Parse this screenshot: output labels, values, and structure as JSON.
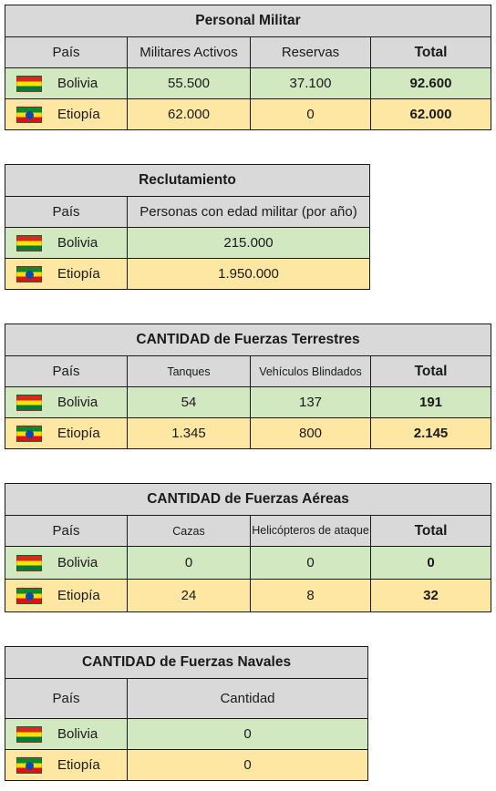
{
  "tables": {
    "personal": {
      "title": "Personal Militar",
      "headers": [
        "País",
        "Militares Activos",
        "Reservas",
        "Total"
      ],
      "rows": [
        {
          "country": "Bolivia",
          "flag": "bolivia-flag-icon",
          "values": [
            "55.500",
            "37.100",
            "92.600"
          ]
        },
        {
          "country": "Etiopía",
          "flag": "ethiopia-flag-icon",
          "values": [
            "62.000",
            "0",
            "62.000"
          ]
        }
      ]
    },
    "reclutamiento": {
      "title": "Reclutamiento",
      "headers": [
        "País",
        "Personas con edad militar (por año)"
      ],
      "rows": [
        {
          "country": "Bolivia",
          "flag": "bolivia-flag-icon",
          "values": [
            "215.000"
          ]
        },
        {
          "country": "Etiopía",
          "flag": "ethiopia-flag-icon",
          "values": [
            "1.950.000"
          ]
        }
      ]
    },
    "terrestres": {
      "title": "CANTIDAD de Fuerzas Terrestres",
      "headers": [
        "País",
        "Tanques",
        "Vehículos Blindados",
        "Total"
      ],
      "rows": [
        {
          "country": "Bolivia",
          "flag": "bolivia-flag-icon",
          "values": [
            "54",
            "137",
            "191"
          ]
        },
        {
          "country": "Etiopía",
          "flag": "ethiopia-flag-icon",
          "values": [
            "1.345",
            "800",
            "2.145"
          ]
        }
      ]
    },
    "aereas": {
      "title": "CANTIDAD de Fuerzas Aéreas",
      "headers": [
        "País",
        "Cazas",
        "Helicópteros de ataque",
        "Total"
      ],
      "rows": [
        {
          "country": "Bolivia",
          "flag": "bolivia-flag-icon",
          "values": [
            "0",
            "0",
            "0"
          ]
        },
        {
          "country": "Etiopía",
          "flag": "ethiopia-flag-icon",
          "values": [
            "24",
            "8",
            "32"
          ]
        }
      ]
    },
    "navales": {
      "title": "CANTIDAD de Fuerzas Navales",
      "headers": [
        "País",
        "Cantidad"
      ],
      "rows": [
        {
          "country": "Bolivia",
          "flag": "bolivia-flag-icon",
          "values": [
            "0"
          ]
        },
        {
          "country": "Etiopía",
          "flag": "ethiopia-flag-icon",
          "values": [
            "0"
          ]
        }
      ]
    }
  },
  "colors": {
    "header_gray": "#d9d9d9",
    "bolivia_row": "#d2e8c1",
    "ethiopia_row": "#fee7a3"
  }
}
